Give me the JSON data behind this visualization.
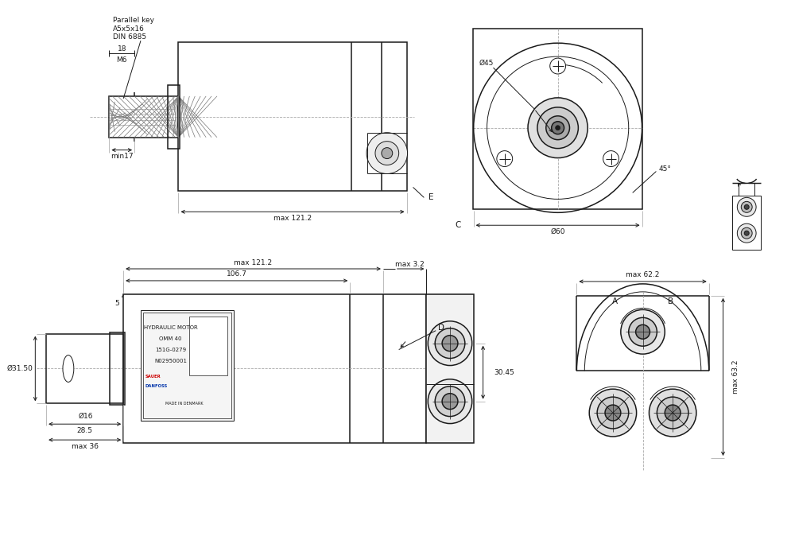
{
  "bg_color": "#ffffff",
  "line_color": "#1a1a1a",
  "annotations": {
    "parallel_key": "Parallel key\nA5x5x16\nDIN 6885",
    "dim_18": "18",
    "dim_M6": "M6",
    "dim_min17": "min17",
    "dim_max121_top": "max 121.2",
    "dim_E": "E",
    "dim_C": "C",
    "dim_phi45": "Ø45",
    "dim_phi60": "Ø60",
    "dim_45deg": "45°",
    "dim_max121_bot": "max 121.2",
    "dim_1067": "106.7",
    "dim_max32": "max 3.2",
    "dim_D": "D",
    "dim_5": "5",
    "dim_phi3150": "Ø31.50",
    "dim_phi16": "Ø16",
    "dim_3045": "30.45",
    "dim_285": "28.5",
    "dim_max36": "max 36",
    "dim_max622": "max 62.2",
    "dim_A": "A",
    "dim_B": "B",
    "dim_max632": "max 63.2"
  }
}
